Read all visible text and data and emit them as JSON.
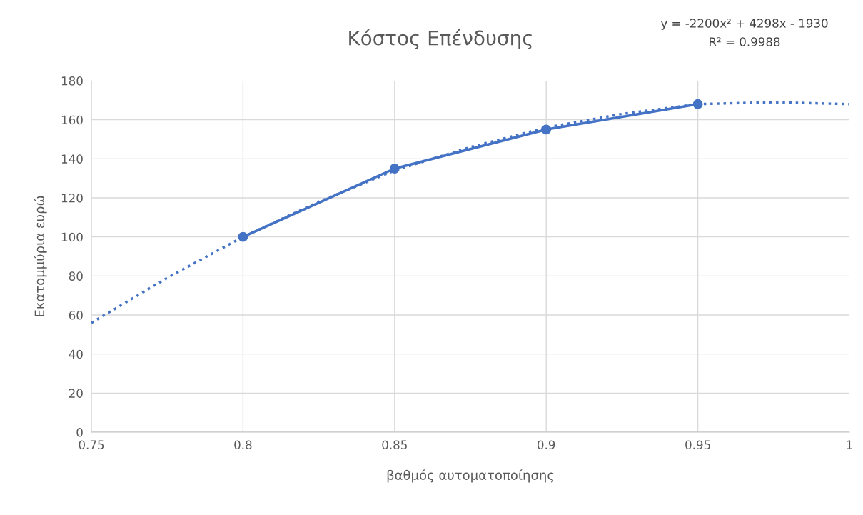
{
  "chart_data": {
    "type": "line",
    "title": "Κόστος Επένδυσης",
    "xlabel": "βαθμός αυτοματοποίησης",
    "ylabel": "Εκατομμύρια ευρώ",
    "series": [
      {
        "color": "#4472c4",
        "x": [
          0.8,
          0.85,
          0.9,
          0.95
        ],
        "values": [
          100,
          135,
          155,
          168
        ],
        "marker": "circle",
        "line_style": "solid"
      },
      {
        "type": "line",
        "color": "#4472c4",
        "x": [
          0.75,
          0.775,
          0.8,
          0.825,
          0.85,
          0.875,
          0.9,
          0.925,
          0.95,
          0.975,
          1.0
        ],
        "values": [
          56,
          79,
          100,
          118,
          134,
          146,
          156,
          163,
          168,
          169,
          168
        ],
        "marker": "none",
        "line_style": "dotted"
      }
    ],
    "xlim": [
      0.75,
      1
    ],
    "xticks": [
      0.75,
      0.8,
      0.85,
      0.9,
      0.95,
      1
    ],
    "ylim": [
      0,
      180
    ],
    "yticks": [
      0,
      20,
      40,
      60,
      80,
      100,
      120,
      140,
      160,
      180
    ],
    "grid": true,
    "annotations": [
      "y = -2200x² + 4298x - 1930",
      "R² = 0.9988"
    ]
  }
}
